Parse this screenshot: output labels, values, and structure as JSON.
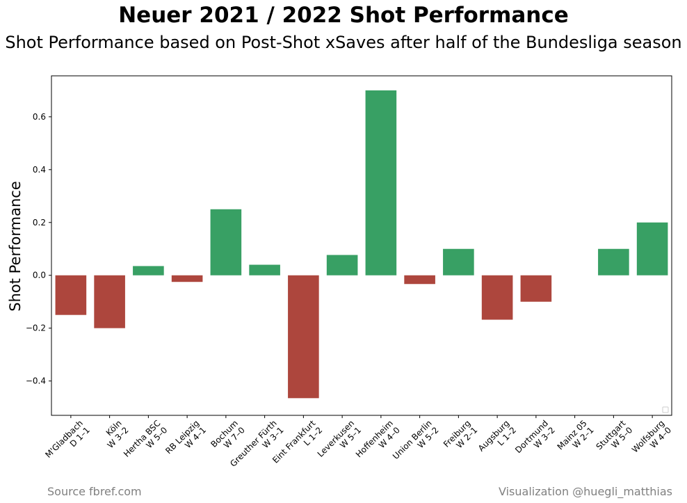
{
  "chart_data": {
    "type": "bar",
    "title": "Neuer 2021 / 2022 Shot Performance",
    "subtitle": "Shot Performance based on Post-Shot xSaves after half of the Bundesliga season",
    "ylabel": "Shot Performance",
    "xlabel": "",
    "categories": [
      [
        "M'Gladbach",
        "D 1–1"
      ],
      [
        "Köln",
        "W 3–2"
      ],
      [
        "Hertha BSC",
        "W 5–0"
      ],
      [
        "RB Leipzig",
        "W 4–1"
      ],
      [
        "Bochum",
        "W 7–0"
      ],
      [
        "Greuther Fürth",
        "W 3–1"
      ],
      [
        "Eint Frankfurt",
        "L 1–2"
      ],
      [
        "Leverkusen",
        "W 5–1"
      ],
      [
        "Hoffenheim",
        "W 4–0"
      ],
      [
        "Union Berlin",
        "W 5–2"
      ],
      [
        "Freiburg",
        "W 2–1"
      ],
      [
        "Augsburg",
        "L 1–2"
      ],
      [
        "Dortmund",
        "W 3–2"
      ],
      [
        "Mainz 05",
        "W 2–1"
      ],
      [
        "Stuttgart",
        "W 5–0"
      ],
      [
        "Wolfsburg",
        "W 4–0"
      ]
    ],
    "values": [
      -0.15,
      -0.2,
      0.035,
      -0.025,
      0.25,
      0.04,
      -0.465,
      0.077,
      0.7,
      -0.033,
      0.1,
      -0.168,
      -0.1,
      0.0,
      0.1,
      0.2
    ],
    "yticks": [
      -0.4,
      -0.2,
      0.0,
      0.2,
      0.4,
      0.6
    ],
    "ytick_labels": [
      "−0.4",
      "−0.2",
      "0.0",
      "0.2",
      "0.4",
      "0.6"
    ],
    "ylim": [
      -0.53,
      0.755
    ],
    "grid": false,
    "legend": "lower-right (empty)",
    "colors": {
      "positive": "#38a064",
      "negative": "#ad463d"
    }
  },
  "footer": {
    "source": "Source fbref.com",
    "credit": "Visualization @huegli_matthias"
  }
}
